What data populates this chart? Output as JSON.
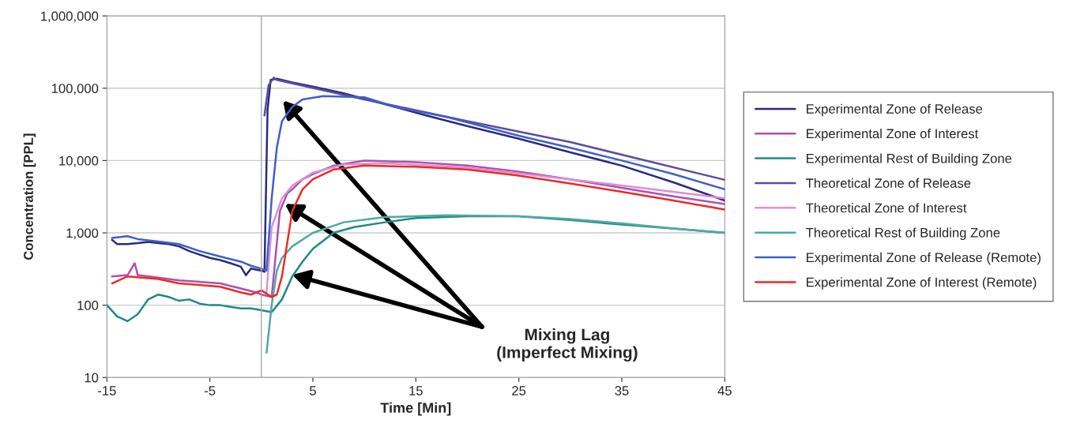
{
  "chart_data": {
    "type": "line",
    "xlabel": "Time [Min]",
    "ylabel": "Concentration [PPL]",
    "log": "y",
    "grid": "y",
    "legend": "right",
    "line_style": "solid",
    "marker": "none",
    "xlim": [
      -15,
      45
    ],
    "xticks": [
      -15,
      -5,
      5,
      15,
      25,
      35,
      45
    ],
    "ylim": [
      10,
      1000000
    ],
    "yticks": [
      {
        "value": 10,
        "label": "10"
      },
      {
        "value": 100,
        "label": "100"
      },
      {
        "value": 1000,
        "label": "1,000"
      },
      {
        "value": 10000,
        "label": "10,000"
      },
      {
        "value": 100000,
        "label": "100,000"
      },
      {
        "value": 1000000,
        "label": "1,000,000"
      }
    ],
    "ref_lines": [
      {
        "axis": "x",
        "value": 0,
        "color": "#aaaaaa"
      }
    ],
    "annotations": [
      "Mixing Lag\n(Imperfect Mixing)"
    ],
    "series": [
      {
        "name": "Experimental Zone of Release",
        "color": "#2b2a7e",
        "x": [
          -14.5,
          -14,
          -13,
          -12,
          -11,
          -10,
          -9,
          -8,
          -7,
          -6,
          -5,
          -4,
          -3,
          -2,
          -1.5,
          -1,
          0,
          0.3,
          0.6,
          0.9,
          1.5,
          3,
          5,
          8,
          12,
          16,
          20,
          25,
          30,
          35,
          40,
          45
        ],
        "values": [
          800,
          700,
          700,
          720,
          750,
          720,
          700,
          650,
          560,
          500,
          450,
          420,
          380,
          340,
          260,
          320,
          300,
          290,
          50000,
          130000,
          135000,
          120000,
          105000,
          85000,
          60000,
          42000,
          30000,
          20000,
          13000,
          8500,
          5000,
          2800
        ]
      },
      {
        "name": "Experimental Zone of Interest",
        "color": "#b04fb0",
        "x": [
          -14.5,
          -13,
          -12.3,
          -12,
          -10,
          -8,
          -6,
          -4,
          -2,
          -0.5,
          0,
          1,
          1.8,
          2.5,
          3,
          4,
          5,
          7,
          10,
          15,
          20,
          25,
          30,
          35,
          40,
          45
        ],
        "values": [
          250,
          260,
          380,
          260,
          240,
          220,
          210,
          200,
          170,
          150,
          140,
          130,
          2000,
          3500,
          4000,
          5500,
          6500,
          8500,
          10000,
          9500,
          8500,
          7000,
          5500,
          4200,
          3200,
          2500
        ]
      },
      {
        "name": "Experimental Rest of Building Zone",
        "color": "#1f8a85",
        "x": [
          -15,
          -14,
          -13,
          -12,
          -11,
          -10,
          -9,
          -8,
          -7,
          -6,
          -5,
          -4,
          -3,
          -2,
          -1,
          0,
          1,
          2,
          3,
          4,
          5,
          7,
          9,
          12,
          15,
          20,
          25,
          30,
          35,
          40,
          45
        ],
        "values": [
          100,
          70,
          60,
          75,
          120,
          140,
          130,
          115,
          120,
          105,
          100,
          100,
          95,
          90,
          90,
          85,
          80,
          120,
          250,
          400,
          600,
          1000,
          1200,
          1400,
          1600,
          1700,
          1700,
          1500,
          1300,
          1150,
          1000
        ]
      },
      {
        "name": "Theoretical Zone of Release",
        "color": "#5a4fa0",
        "x": [
          0.3,
          0.7,
          1.2,
          1.5,
          10,
          20,
          30,
          45
        ],
        "values": [
          42000,
          110000,
          140000,
          130000,
          70000,
          35000,
          18000,
          5400
        ]
      },
      {
        "name": "Theoretical Zone of Interest",
        "color": "#d98fd8",
        "x": [
          0.5,
          1,
          2,
          3,
          5,
          8,
          12,
          20,
          30,
          40,
          45
        ],
        "values": [
          150,
          1200,
          3000,
          4500,
          6800,
          8800,
          9200,
          8000,
          5500,
          3700,
          3000
        ]
      },
      {
        "name": "Theoretical Rest of Building Zone",
        "color": "#4fa8a4",
        "x": [
          0.5,
          1,
          1.5,
          2,
          3,
          5,
          8,
          12,
          18,
          25,
          30,
          35,
          40,
          45
        ],
        "values": [
          22,
          100,
          300,
          450,
          650,
          1000,
          1400,
          1650,
          1750,
          1700,
          1550,
          1350,
          1150,
          1000
        ]
      },
      {
        "name": "Experimental Zone of Release (Remote)",
        "color": "#3f5fc8",
        "x": [
          -14.5,
          -13,
          -12,
          -10,
          -8,
          -6,
          -4,
          -2,
          -1,
          0,
          0.5,
          1,
          1.5,
          2,
          3,
          4,
          6,
          10,
          13,
          18,
          25,
          30,
          35,
          40,
          45
        ],
        "values": [
          850,
          900,
          820,
          760,
          700,
          560,
          470,
          400,
          350,
          320,
          300,
          3000,
          15000,
          35000,
          55000,
          70000,
          78000,
          75000,
          55000,
          40000,
          22000,
          15000,
          10000,
          6500,
          4000
        ]
      },
      {
        "name": "Experimental Zone of Interest (Remote)",
        "color": "#ee2a24",
        "x": [
          -14.5,
          -13,
          -10,
          -8,
          -6,
          -4,
          -2,
          -1,
          0,
          1,
          1.5,
          2,
          3,
          4,
          5,
          7,
          10,
          15,
          20,
          25,
          30,
          35,
          40,
          45
        ],
        "values": [
          200,
          250,
          230,
          200,
          190,
          180,
          150,
          140,
          160,
          130,
          140,
          250,
          2000,
          4000,
          5500,
          7500,
          8500,
          8200,
          7500,
          6200,
          4800,
          3700,
          2800,
          2100
        ]
      }
    ]
  }
}
